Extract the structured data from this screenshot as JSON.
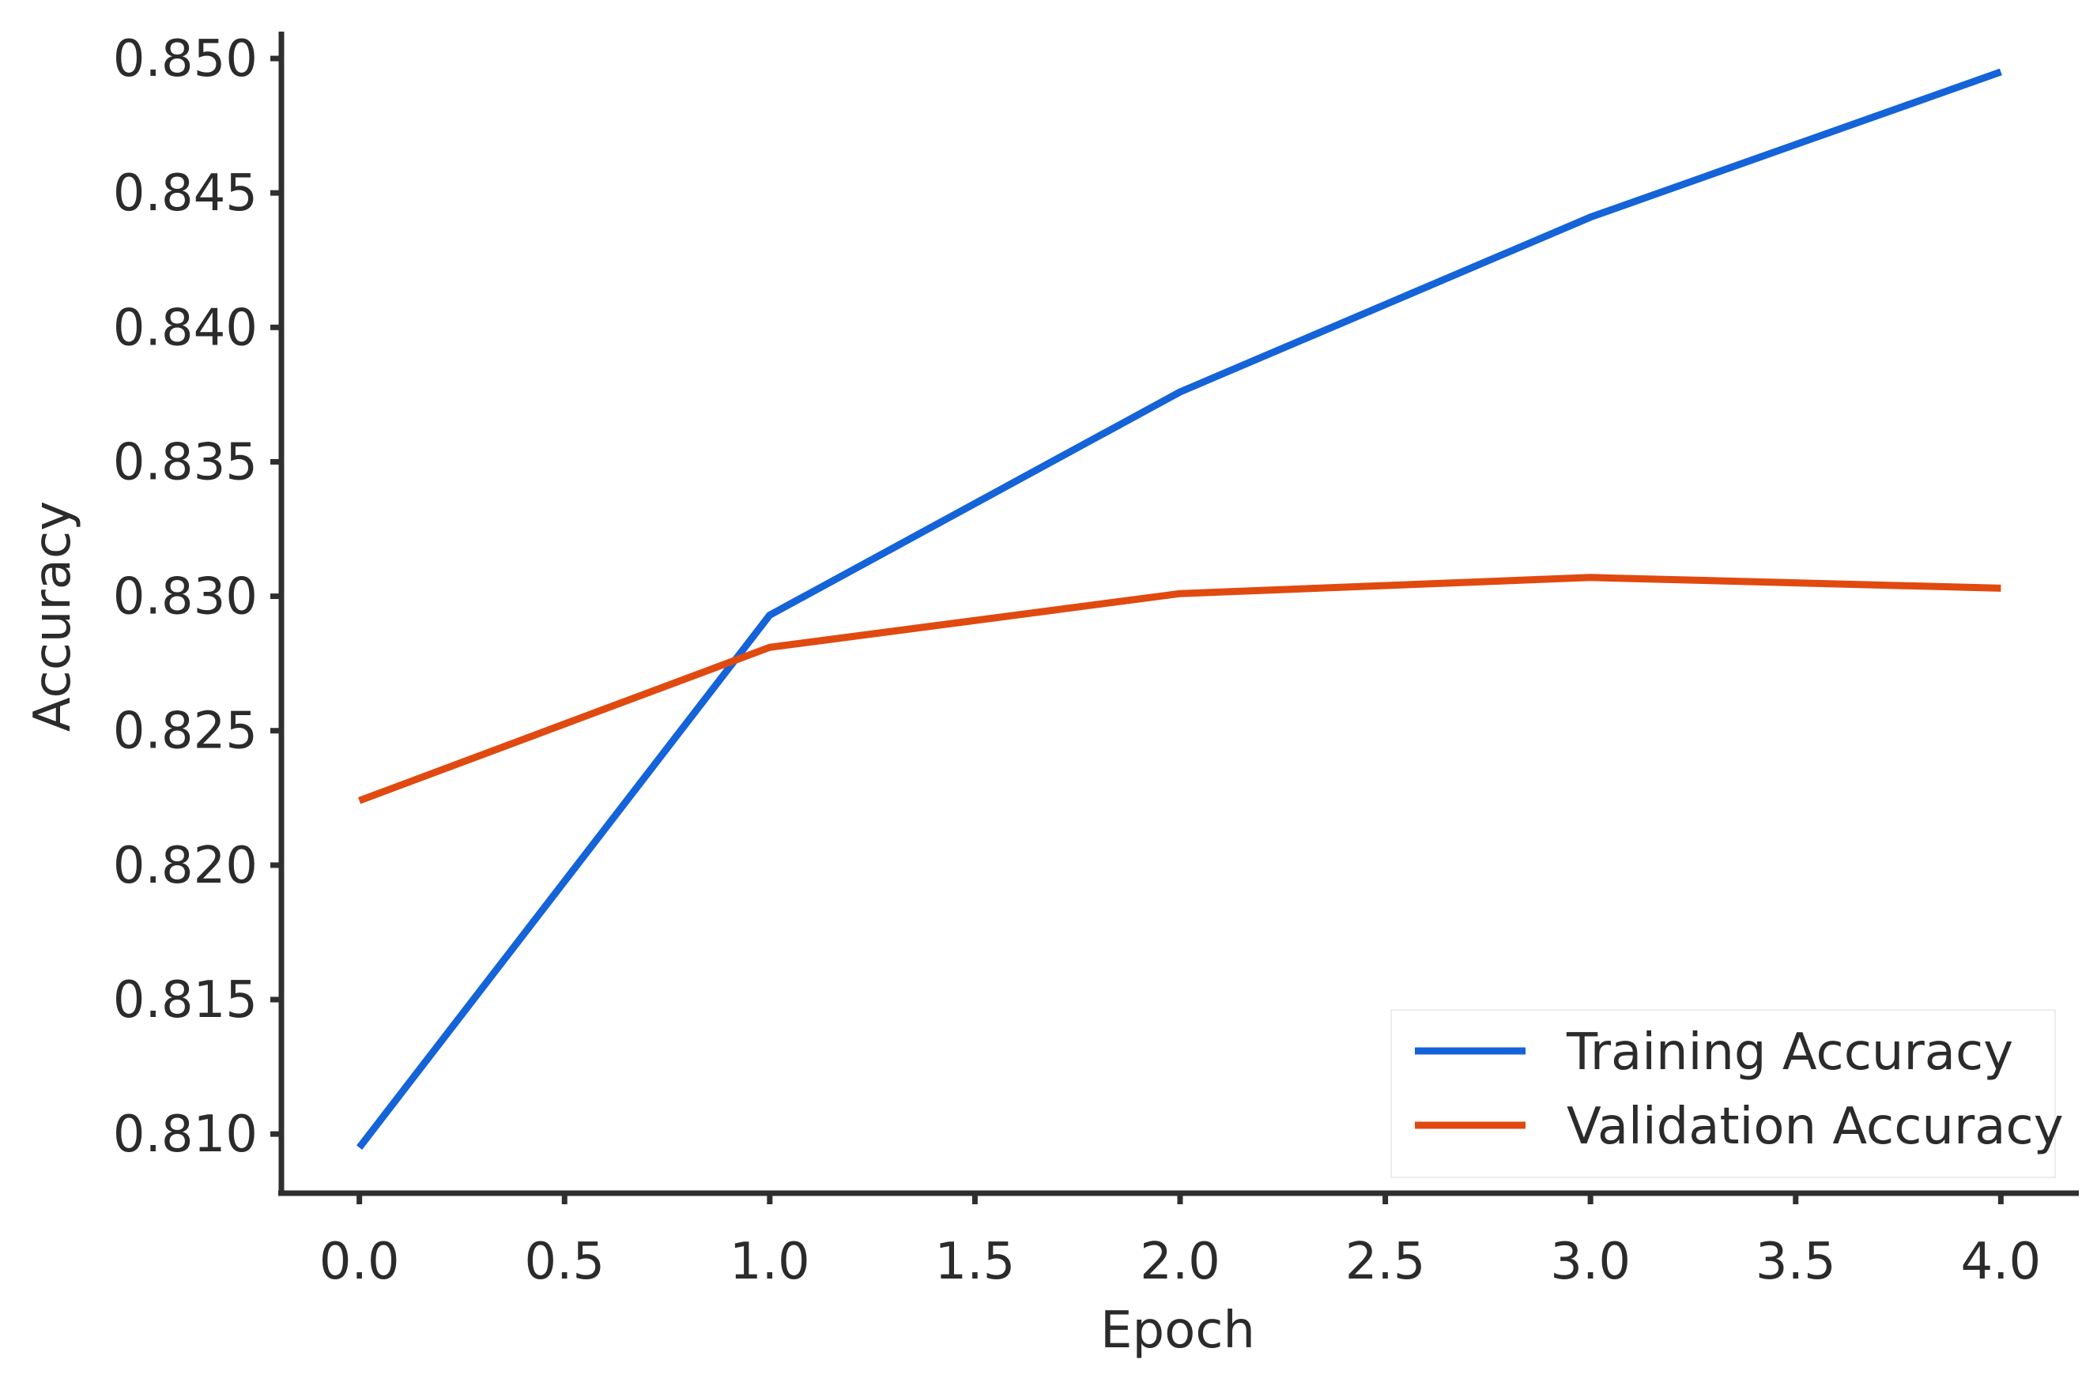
{
  "chart_data": {
    "type": "line",
    "title": "",
    "xlabel": "Epoch",
    "ylabel": "Accuracy",
    "x": [
      0,
      1,
      2,
      3,
      4
    ],
    "xlim": [
      -0.19,
      4.19
    ],
    "ylim": [
      0.8078,
      0.851
    ],
    "xticks": [
      0.0,
      0.5,
      1.0,
      1.5,
      2.0,
      2.5,
      3.0,
      3.5,
      4.0
    ],
    "xtick_labels": [
      "0.0",
      "0.5",
      "1.0",
      "1.5",
      "2.0",
      "2.5",
      "3.0",
      "3.5",
      "4.0"
    ],
    "yticks": [
      0.81,
      0.815,
      0.82,
      0.825,
      0.83,
      0.835,
      0.84,
      0.845,
      0.85
    ],
    "ytick_labels": [
      "0.810",
      "0.815",
      "0.820",
      "0.825",
      "0.830",
      "0.835",
      "0.840",
      "0.845",
      "0.850"
    ],
    "series": [
      {
        "name": "Training Accuracy",
        "color": "#1463d8",
        "values": [
          0.8095,
          0.8293,
          0.8376,
          0.8441,
          0.8495
        ]
      },
      {
        "name": "Validation Accuracy",
        "color": "#e04a10",
        "values": [
          0.8224,
          0.8281,
          0.8301,
          0.8307,
          0.8303
        ]
      }
    ],
    "grid": false,
    "legend": "lower-right"
  }
}
